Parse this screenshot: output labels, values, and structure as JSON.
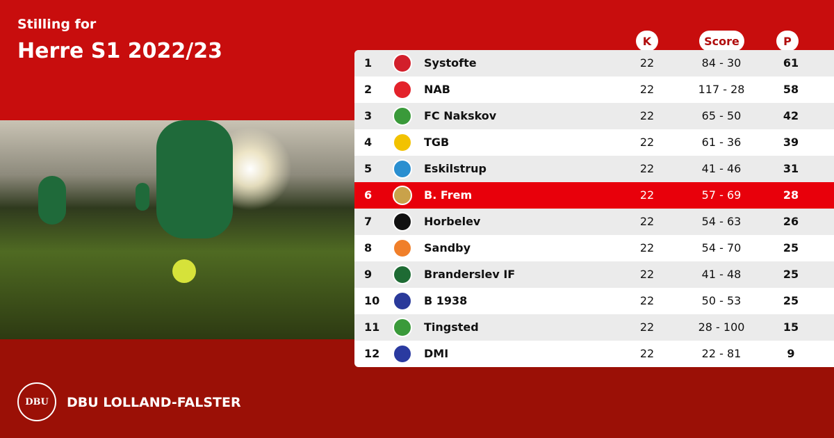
{
  "header": {
    "subtitle": "Stilling for",
    "title": "Herre S1 2022/23"
  },
  "columns": {
    "k": "K",
    "score": "Score",
    "p": "P"
  },
  "highlight_color": "#e8000b",
  "rows": [
    {
      "rank": "1",
      "team": "Systofte",
      "k": "22",
      "score": "84 - 30",
      "p": "61",
      "logo_color": "#d21f2b"
    },
    {
      "rank": "2",
      "team": "NAB",
      "k": "22",
      "score": "117 - 28",
      "p": "58",
      "logo_color": "#e3222a"
    },
    {
      "rank": "3",
      "team": "FC Nakskov",
      "k": "22",
      "score": "65 - 50",
      "p": "42",
      "logo_color": "#3a9a3a"
    },
    {
      "rank": "4",
      "team": "TGB",
      "k": "22",
      "score": "61 - 36",
      "p": "39",
      "logo_color": "#f2c200"
    },
    {
      "rank": "5",
      "team": "Eskilstrup",
      "k": "22",
      "score": "41 - 46",
      "p": "31",
      "logo_color": "#2a8fd0"
    },
    {
      "rank": "6",
      "team": "B. Frem",
      "k": "22",
      "score": "57 - 69",
      "p": "28",
      "logo_color": "#c9a24a"
    },
    {
      "rank": "7",
      "team": "Horbelev",
      "k": "22",
      "score": "54 - 63",
      "p": "26",
      "logo_color": "#111111"
    },
    {
      "rank": "8",
      "team": "Sandby",
      "k": "22",
      "score": "54 - 70",
      "p": "25",
      "logo_color": "#f07f2a"
    },
    {
      "rank": "9",
      "team": "Branderslev IF",
      "k": "22",
      "score": "41 - 48",
      "p": "25",
      "logo_color": "#1e6b34"
    },
    {
      "rank": "10",
      "team": "B 1938",
      "k": "22",
      "score": "50 - 53",
      "p": "25",
      "logo_color": "#2a3a9a"
    },
    {
      "rank": "11",
      "team": "Tingsted",
      "k": "22",
      "score": "28 - 100",
      "p": "15",
      "logo_color": "#3a9a3a"
    },
    {
      "rank": "12",
      "team": "DMI",
      "k": "22",
      "score": "22 - 81",
      "p": "9",
      "logo_color": "#2a3aa0"
    }
  ],
  "footer": {
    "org": "DBU LOLLAND-FALSTER",
    "logo_text": "DBU"
  }
}
